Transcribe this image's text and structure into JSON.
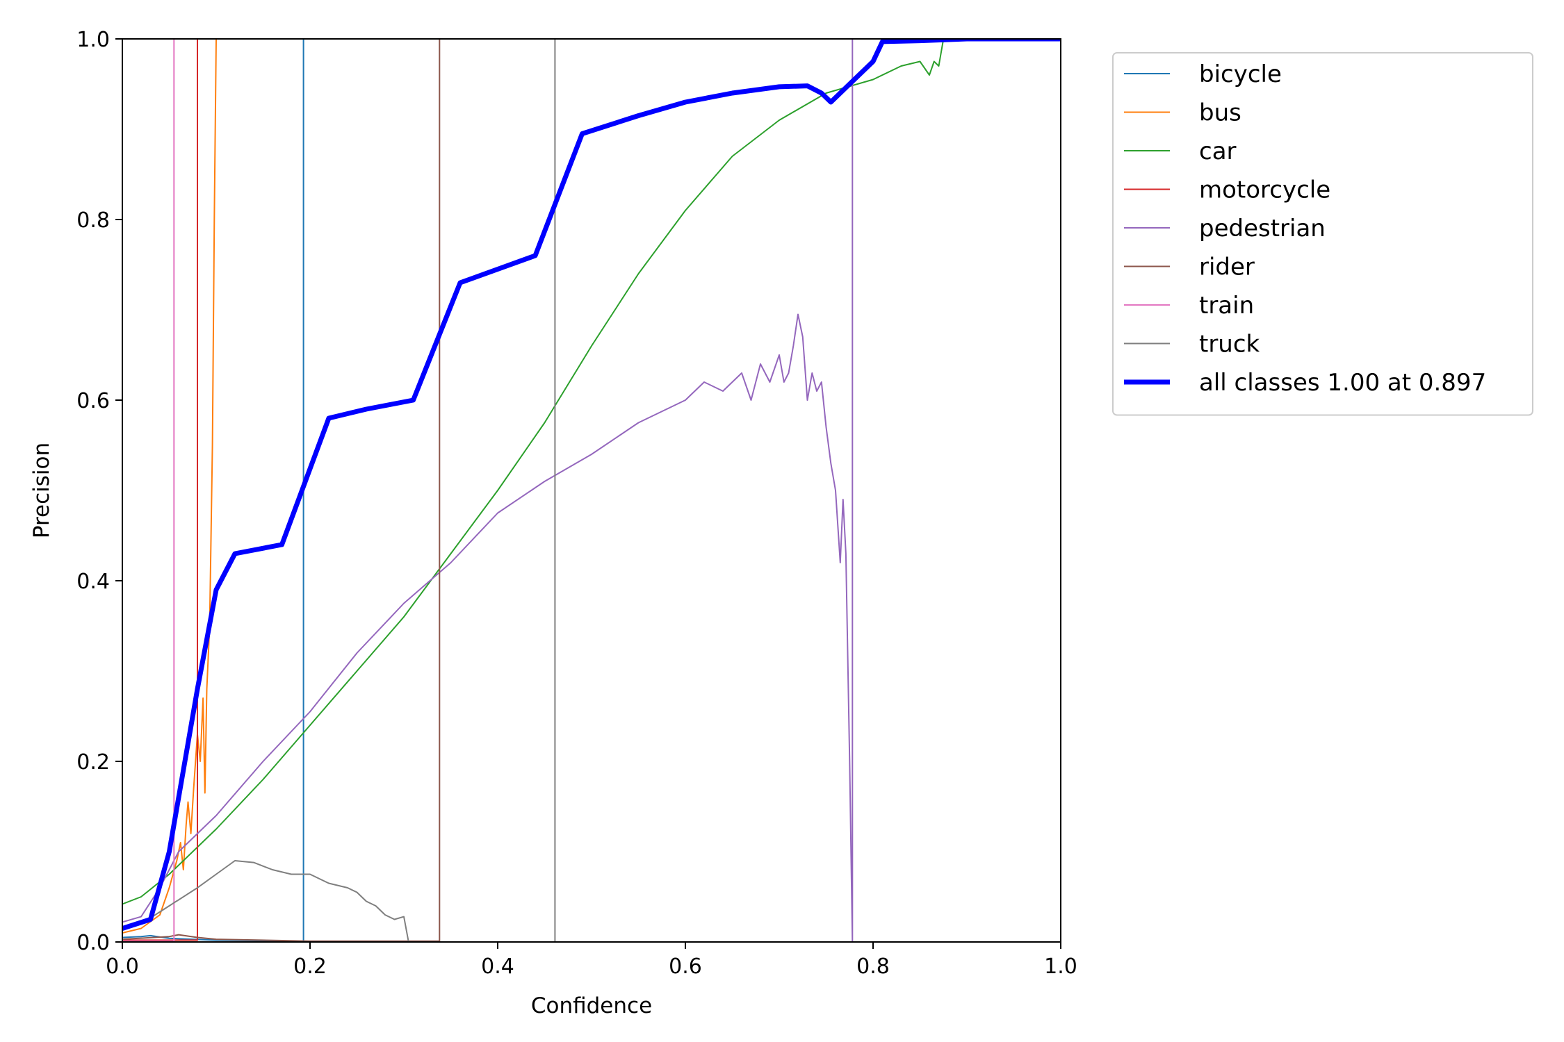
{
  "chart_data": {
    "type": "line",
    "title": "",
    "xlabel": "Confidence",
    "ylabel": "Precision",
    "xlim": [
      0,
      1
    ],
    "ylim": [
      0,
      1
    ],
    "xticks": [
      "0.0",
      "0.2",
      "0.4",
      "0.6",
      "0.8",
      "1.0"
    ],
    "yticks": [
      "0.0",
      "0.2",
      "0.4",
      "0.6",
      "0.8",
      "1.0"
    ],
    "grid": false,
    "legend_position": "outside-top-right",
    "series": [
      {
        "name": "bicycle",
        "color": "#1f77b4",
        "width": 2,
        "points": [
          [
            0,
            0.005
          ],
          [
            0.02,
            0.006
          ],
          [
            0.03,
            0.007
          ],
          [
            0.05,
            0.004
          ],
          [
            0.1,
            0.002
          ],
          [
            0.19,
            0.001
          ],
          [
            0.193,
            0.001
          ],
          [
            0.193,
            1.0
          ],
          [
            1.0,
            1.0
          ]
        ]
      },
      {
        "name": "bus",
        "color": "#ff7f0e",
        "width": 2,
        "points": [
          [
            0,
            0.01
          ],
          [
            0.02,
            0.015
          ],
          [
            0.04,
            0.03
          ],
          [
            0.05,
            0.06
          ],
          [
            0.058,
            0.09
          ],
          [
            0.062,
            0.11
          ],
          [
            0.065,
            0.08
          ],
          [
            0.068,
            0.13
          ],
          [
            0.07,
            0.155
          ],
          [
            0.073,
            0.12
          ],
          [
            0.076,
            0.17
          ],
          [
            0.08,
            0.23
          ],
          [
            0.083,
            0.2
          ],
          [
            0.086,
            0.27
          ],
          [
            0.088,
            0.165
          ],
          [
            0.09,
            0.28
          ],
          [
            0.093,
            0.35
          ],
          [
            0.096,
            0.55
          ],
          [
            0.098,
            0.8
          ],
          [
            0.1,
            1.0
          ],
          [
            1.0,
            1.0
          ]
        ]
      },
      {
        "name": "car",
        "color": "#2ca02c",
        "width": 2,
        "points": [
          [
            0,
            0.042
          ],
          [
            0.02,
            0.05
          ],
          [
            0.05,
            0.075
          ],
          [
            0.1,
            0.125
          ],
          [
            0.15,
            0.18
          ],
          [
            0.2,
            0.24
          ],
          [
            0.25,
            0.3
          ],
          [
            0.3,
            0.36
          ],
          [
            0.35,
            0.43
          ],
          [
            0.4,
            0.5
          ],
          [
            0.45,
            0.575
          ],
          [
            0.5,
            0.66
          ],
          [
            0.55,
            0.74
          ],
          [
            0.6,
            0.81
          ],
          [
            0.65,
            0.87
          ],
          [
            0.7,
            0.91
          ],
          [
            0.75,
            0.94
          ],
          [
            0.8,
            0.955
          ],
          [
            0.83,
            0.97
          ],
          [
            0.85,
            0.975
          ],
          [
            0.86,
            0.96
          ],
          [
            0.865,
            0.975
          ],
          [
            0.87,
            0.97
          ],
          [
            0.875,
            1.0
          ],
          [
            1.0,
            1.0
          ]
        ]
      },
      {
        "name": "motorcycle",
        "color": "#d62728",
        "width": 2,
        "points": [
          [
            0,
            0.002
          ],
          [
            0.08,
            0.002
          ],
          [
            0.08,
            1.0
          ],
          [
            1.0,
            1.0
          ]
        ]
      },
      {
        "name": "pedestrian",
        "color": "#9467bd",
        "width": 2,
        "points": [
          [
            0,
            0.022
          ],
          [
            0.02,
            0.028
          ],
          [
            0.04,
            0.06
          ],
          [
            0.06,
            0.1
          ],
          [
            0.1,
            0.14
          ],
          [
            0.15,
            0.2
          ],
          [
            0.2,
            0.255
          ],
          [
            0.25,
            0.32
          ],
          [
            0.3,
            0.375
          ],
          [
            0.35,
            0.42
          ],
          [
            0.4,
            0.475
          ],
          [
            0.45,
            0.51
          ],
          [
            0.5,
            0.54
          ],
          [
            0.55,
            0.575
          ],
          [
            0.6,
            0.6
          ],
          [
            0.62,
            0.62
          ],
          [
            0.64,
            0.61
          ],
          [
            0.66,
            0.63
          ],
          [
            0.67,
            0.6
          ],
          [
            0.68,
            0.64
          ],
          [
            0.69,
            0.62
          ],
          [
            0.7,
            0.65
          ],
          [
            0.705,
            0.62
          ],
          [
            0.71,
            0.63
          ],
          [
            0.715,
            0.66
          ],
          [
            0.72,
            0.695
          ],
          [
            0.725,
            0.67
          ],
          [
            0.73,
            0.6
          ],
          [
            0.735,
            0.63
          ],
          [
            0.74,
            0.61
          ],
          [
            0.745,
            0.62
          ],
          [
            0.75,
            0.57
          ],
          [
            0.755,
            0.53
          ],
          [
            0.76,
            0.5
          ],
          [
            0.765,
            0.42
          ],
          [
            0.768,
            0.49
          ],
          [
            0.771,
            0.43
          ],
          [
            0.775,
            0.2
          ],
          [
            0.778,
            0.0
          ],
          [
            0.778,
            1.0
          ],
          [
            1.0,
            1.0
          ]
        ]
      },
      {
        "name": "rider",
        "color": "#8c564b",
        "width": 2,
        "points": [
          [
            0,
            0.003
          ],
          [
            0.05,
            0.006
          ],
          [
            0.06,
            0.008
          ],
          [
            0.08,
            0.005
          ],
          [
            0.1,
            0.003
          ],
          [
            0.2,
            0.001
          ],
          [
            0.338,
            0.001
          ],
          [
            0.338,
            1.0
          ],
          [
            1.0,
            1.0
          ]
        ]
      },
      {
        "name": "train",
        "color": "#e377c2",
        "width": 2,
        "points": [
          [
            0,
            0.001
          ],
          [
            0.055,
            0.001
          ],
          [
            0.055,
            1.0
          ],
          [
            1.0,
            1.0
          ]
        ]
      },
      {
        "name": "truck",
        "color": "#7f7f7f",
        "width": 2,
        "points": [
          [
            0,
            0.015
          ],
          [
            0.02,
            0.02
          ],
          [
            0.05,
            0.04
          ],
          [
            0.08,
            0.06
          ],
          [
            0.1,
            0.075
          ],
          [
            0.12,
            0.09
          ],
          [
            0.14,
            0.088
          ],
          [
            0.16,
            0.08
          ],
          [
            0.18,
            0.075
          ],
          [
            0.2,
            0.075
          ],
          [
            0.22,
            0.065
          ],
          [
            0.24,
            0.06
          ],
          [
            0.25,
            0.055
          ],
          [
            0.26,
            0.045
          ],
          [
            0.27,
            0.04
          ],
          [
            0.28,
            0.03
          ],
          [
            0.29,
            0.025
          ],
          [
            0.3,
            0.028
          ],
          [
            0.305,
            0.0
          ],
          [
            0.461,
            0.0
          ],
          [
            0.461,
            1.0
          ],
          [
            1.0,
            1.0
          ]
        ]
      },
      {
        "name": "all classes 1.00 at 0.897",
        "color": "#0000ff",
        "width": 7,
        "points": [
          [
            0,
            0.015
          ],
          [
            0.03,
            0.025
          ],
          [
            0.05,
            0.1
          ],
          [
            0.08,
            0.28
          ],
          [
            0.1,
            0.39
          ],
          [
            0.12,
            0.43
          ],
          [
            0.17,
            0.44
          ],
          [
            0.22,
            0.58
          ],
          [
            0.26,
            0.59
          ],
          [
            0.31,
            0.6
          ],
          [
            0.36,
            0.73
          ],
          [
            0.44,
            0.76
          ],
          [
            0.49,
            0.895
          ],
          [
            0.55,
            0.915
          ],
          [
            0.6,
            0.93
          ],
          [
            0.65,
            0.94
          ],
          [
            0.7,
            0.947
          ],
          [
            0.73,
            0.948
          ],
          [
            0.745,
            0.94
          ],
          [
            0.755,
            0.93
          ],
          [
            0.77,
            0.945
          ],
          [
            0.8,
            0.975
          ],
          [
            0.81,
            0.997
          ],
          [
            0.85,
            0.998
          ],
          [
            0.9,
            1.0
          ],
          [
            1.0,
            1.0
          ]
        ]
      }
    ]
  }
}
